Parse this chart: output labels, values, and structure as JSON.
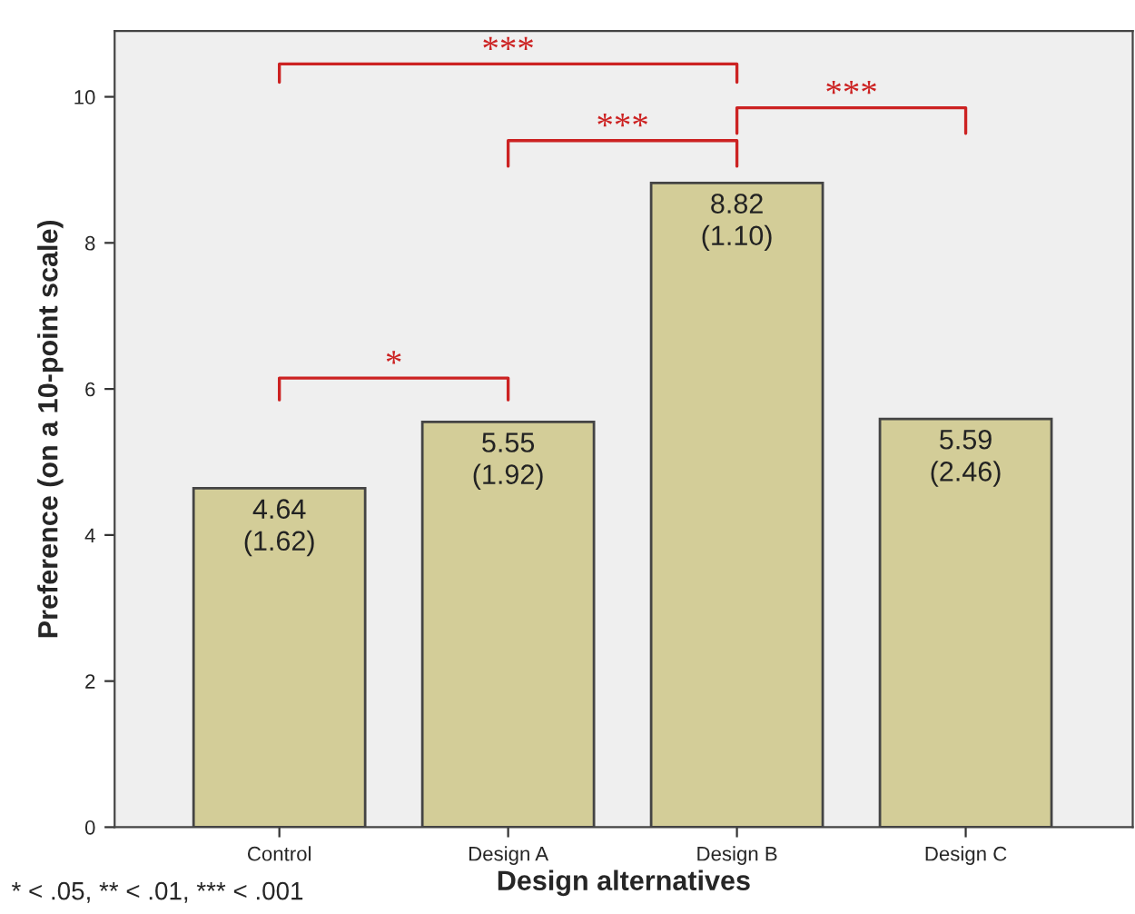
{
  "chart_data": {
    "type": "bar",
    "xlabel": "Design alternatives",
    "ylabel": "Preference (on a 10-point scale)",
    "categories": [
      "Control",
      "Design A",
      "Design B",
      "Design C"
    ],
    "values": [
      4.64,
      5.55,
      8.82,
      5.59
    ],
    "value_labels": [
      "4.64\n(1.62)",
      "5.55\n(1.92)",
      "8.82\n(1.10)",
      "5.59\n(2.46)"
    ],
    "color": "#d3cd98",
    "ylim": [
      0,
      10.9
    ],
    "yticks": [
      0,
      2,
      4,
      6,
      8,
      10
    ],
    "grid": false,
    "legend": false,
    "annotations": [
      "***",
      "***",
      "***",
      "*",
      "* < .05, ** < .01, *** < .001"
    ]
  }
}
